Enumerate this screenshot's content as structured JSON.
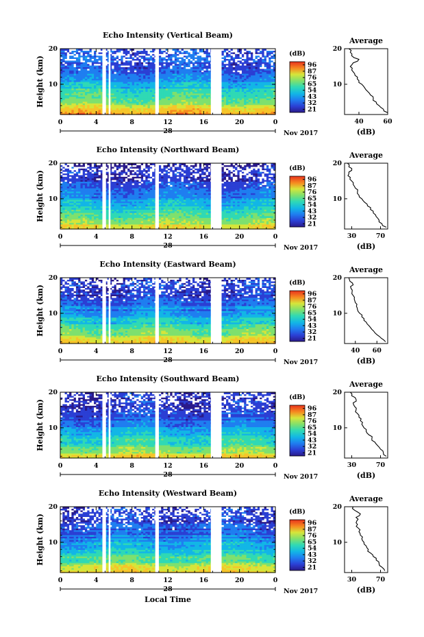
{
  "figure": {
    "xlabel": "Local Time",
    "month_year": "Nov 2017",
    "colorbar_unit": "(dB)",
    "colorbar_ticks": [
      "96",
      "87",
      "76",
      "65",
      "54",
      "43",
      "32",
      "21"
    ],
    "average_title": "Average",
    "average_xlabel": "(dB)",
    "colors": {
      "colormap": [
        "#2a1a8a",
        "#2b3fd4",
        "#1f7ef0",
        "#12b6e6",
        "#2fd9b5",
        "#7ee06e",
        "#d6e53a",
        "#f6c52a",
        "#f68a20",
        "#e8321c"
      ],
      "gap": "#ffffff",
      "axis": "#000000"
    }
  },
  "panels": [
    {
      "title": "Echo Intensity (Vertical Beam)",
      "ylabel": "Height (km)",
      "yticks": [
        "20",
        "10"
      ],
      "xticks": [
        "0",
        "4",
        "8",
        "12",
        "16",
        "20",
        "0"
      ],
      "day_label": "28",
      "avg_xticks": [
        "40",
        "60"
      ]
    },
    {
      "title": "Echo Intensity (Northward Beam)",
      "ylabel": "Height (km)",
      "yticks": [
        "20",
        "10"
      ],
      "xticks": [
        "0",
        "4",
        "8",
        "12",
        "16",
        "20",
        "0"
      ],
      "day_label": "28",
      "avg_xticks": [
        "30",
        "70"
      ]
    },
    {
      "title": "Echo Intensity (Eastward Beam)",
      "ylabel": "Height (km)",
      "yticks": [
        "20",
        "10"
      ],
      "xticks": [
        "0",
        "4",
        "8",
        "12",
        "16",
        "20",
        "0"
      ],
      "day_label": "28",
      "avg_xticks": [
        "40",
        "60"
      ]
    },
    {
      "title": "Echo Intensity (Southward Beam)",
      "ylabel": "Height (km)",
      "yticks": [
        "20",
        "10"
      ],
      "xticks": [
        "0",
        "4",
        "8",
        "12",
        "16",
        "20",
        "0"
      ],
      "day_label": "28",
      "avg_xticks": [
        "30",
        "70"
      ]
    },
    {
      "title": "Echo Intensity (Westward Beam)",
      "ylabel": "Height (km)",
      "yticks": [
        "20",
        "10"
      ],
      "xticks": [
        "0",
        "4",
        "8",
        "12",
        "16",
        "20",
        "0"
      ],
      "day_label": "28",
      "avg_xticks": [
        "30",
        "70"
      ]
    }
  ],
  "chart_data": [
    {
      "type": "heatmap",
      "title": "Echo Intensity (Vertical Beam)",
      "xlabel": "Local Time",
      "ylabel": "Height (km)",
      "xlim": [
        0,
        24
      ],
      "ylim": [
        1.5,
        20
      ],
      "colorbar": {
        "label": "(dB)",
        "range": [
          21,
          96
        ]
      },
      "data_gaps_hours": [
        [
          4.7,
          5.1
        ],
        [
          5.4,
          5.6
        ],
        [
          10.6,
          11.0
        ],
        [
          16.8,
          18.0
        ]
      ],
      "intensity_profile_db": {
        "height_km": [
          2,
          4,
          6,
          8,
          10,
          12,
          14,
          16,
          18,
          20
        ],
        "value": [
          82,
          68,
          60,
          54,
          47,
          42,
          38,
          33,
          40,
          30
        ]
      }
    },
    {
      "type": "line",
      "title": "Average",
      "xlabel": "(dB)",
      "ylabel": "",
      "xlim": [
        30,
        60
      ],
      "ylim": [
        1.5,
        20
      ],
      "series": [
        {
          "x": [
            60,
            57,
            54,
            52,
            50,
            48,
            46,
            44,
            42,
            40,
            39,
            37,
            35,
            34,
            36,
            40,
            35,
            34,
            33
          ],
          "y": [
            2,
            3,
            4,
            5,
            6,
            7,
            8,
            9,
            10,
            11,
            12,
            13,
            14,
            15,
            16,
            17,
            18,
            19,
            20
          ]
        }
      ]
    },
    {
      "type": "heatmap",
      "title": "Echo Intensity (Northward Beam)",
      "xlabel": "Local Time",
      "ylabel": "Height (km)",
      "xlim": [
        0,
        24
      ],
      "ylim": [
        1.5,
        20
      ],
      "colorbar": {
        "label": "(dB)",
        "range": [
          21,
          96
        ]
      },
      "data_gaps_hours": [
        [
          4.7,
          5.1
        ],
        [
          5.4,
          5.6
        ],
        [
          10.6,
          11.0
        ],
        [
          16.8,
          18.0
        ]
      ],
      "intensity_profile_db": {
        "height_km": [
          2,
          4,
          6,
          8,
          10,
          12,
          14,
          16,
          18,
          20
        ],
        "value": [
          72,
          60,
          54,
          49,
          43,
          37,
          33,
          28,
          30,
          26
        ]
      }
    },
    {
      "type": "line",
      "title": "Average",
      "xlabel": "(dB)",
      "ylabel": "",
      "xlim": [
        20,
        80
      ],
      "ylim": [
        1.5,
        20
      ],
      "series": [
        {
          "x": [
            78,
            72,
            68,
            64,
            60,
            56,
            52,
            48,
            44,
            40,
            38,
            35,
            32,
            30,
            28,
            26,
            30,
            26,
            24
          ],
          "y": [
            2,
            3,
            4,
            5,
            6,
            7,
            8,
            9,
            10,
            11,
            12,
            13,
            14,
            15,
            16,
            17,
            18,
            19,
            20
          ]
        }
      ]
    },
    {
      "type": "heatmap",
      "title": "Echo Intensity (Eastward Beam)",
      "xlabel": "Local Time",
      "ylabel": "Height (km)",
      "xlim": [
        0,
        24
      ],
      "ylim": [
        1.5,
        20
      ],
      "colorbar": {
        "label": "(dB)",
        "range": [
          21,
          96
        ]
      },
      "data_gaps_hours": [
        [
          4.7,
          5.1
        ],
        [
          5.4,
          5.6
        ],
        [
          10.6,
          11.0
        ],
        [
          16.8,
          18.0
        ]
      ],
      "intensity_profile_db": {
        "height_km": [
          2,
          4,
          6,
          8,
          10,
          12,
          14,
          16,
          18,
          20
        ],
        "value": [
          76,
          63,
          56,
          50,
          44,
          39,
          35,
          31,
          34,
          30
        ]
      }
    },
    {
      "type": "line",
      "title": "Average",
      "xlabel": "(dB)",
      "ylabel": "",
      "xlim": [
        30,
        70
      ],
      "ylim": [
        1.5,
        20
      ],
      "series": [
        {
          "x": [
            68,
            64,
            60,
            57,
            54,
            51,
            48,
            46,
            44,
            42,
            41,
            40,
            39,
            38,
            37,
            36,
            38,
            35,
            34
          ],
          "y": [
            2,
            3,
            4,
            5,
            6,
            7,
            8,
            9,
            10,
            11,
            12,
            13,
            14,
            15,
            16,
            17,
            18,
            19,
            20
          ]
        }
      ]
    },
    {
      "type": "heatmap",
      "title": "Echo Intensity (Southward Beam)",
      "xlabel": "Local Time",
      "ylabel": "Height (km)",
      "xlim": [
        0,
        24
      ],
      "ylim": [
        1.5,
        20
      ],
      "colorbar": {
        "label": "(dB)",
        "range": [
          21,
          96
        ]
      },
      "data_gaps_hours": [
        [
          4.7,
          5.1
        ],
        [
          5.4,
          5.6
        ],
        [
          10.6,
          11.0
        ],
        [
          16.8,
          18.0
        ]
      ],
      "intensity_profile_db": {
        "height_km": [
          2,
          4,
          6,
          8,
          10,
          12,
          14,
          16,
          18,
          20
        ],
        "value": [
          74,
          61,
          55,
          50,
          44,
          38,
          34,
          30,
          32,
          28
        ]
      }
    },
    {
      "type": "line",
      "title": "Average",
      "xlabel": "(dB)",
      "ylabel": "",
      "xlim": [
        20,
        80
      ],
      "ylim": [
        1.5,
        20
      ],
      "series": [
        {
          "x": [
            78,
            74,
            70,
            66,
            62,
            58,
            54,
            50,
            47,
            44,
            42,
            40,
            38,
            36,
            34,
            32,
            36,
            30,
            28
          ],
          "y": [
            2,
            3,
            4,
            5,
            6,
            7,
            8,
            9,
            10,
            11,
            12,
            13,
            14,
            15,
            16,
            17,
            18,
            19,
            20
          ]
        }
      ]
    },
    {
      "type": "heatmap",
      "title": "Echo Intensity (Westward Beam)",
      "xlabel": "Local Time",
      "ylabel": "Height (km)",
      "xlim": [
        0,
        24
      ],
      "ylim": [
        1.5,
        20
      ],
      "colorbar": {
        "label": "(dB)",
        "range": [
          21,
          96
        ]
      },
      "data_gaps_hours": [
        [
          4.7,
          5.1
        ],
        [
          5.4,
          5.6
        ],
        [
          10.6,
          11.0
        ],
        [
          16.8,
          18.0
        ]
      ],
      "intensity_profile_db": {
        "height_km": [
          2,
          4,
          6,
          8,
          10,
          12,
          14,
          16,
          18,
          20
        ],
        "value": [
          75,
          62,
          56,
          51,
          45,
          39,
          35,
          31,
          36,
          30
        ]
      }
    },
    {
      "type": "line",
      "title": "Average",
      "xlabel": "(dB)",
      "ylabel": "",
      "xlim": [
        20,
        80
      ],
      "ylim": [
        1.5,
        20
      ],
      "series": [
        {
          "x": [
            76,
            72,
            68,
            64,
            60,
            56,
            53,
            50,
            47,
            44,
            42,
            40,
            39,
            38,
            37,
            36,
            42,
            34,
            32
          ],
          "y": [
            2,
            3,
            4,
            5,
            6,
            7,
            8,
            9,
            10,
            11,
            12,
            13,
            14,
            15,
            16,
            17,
            18,
            19,
            20
          ]
        }
      ]
    }
  ]
}
